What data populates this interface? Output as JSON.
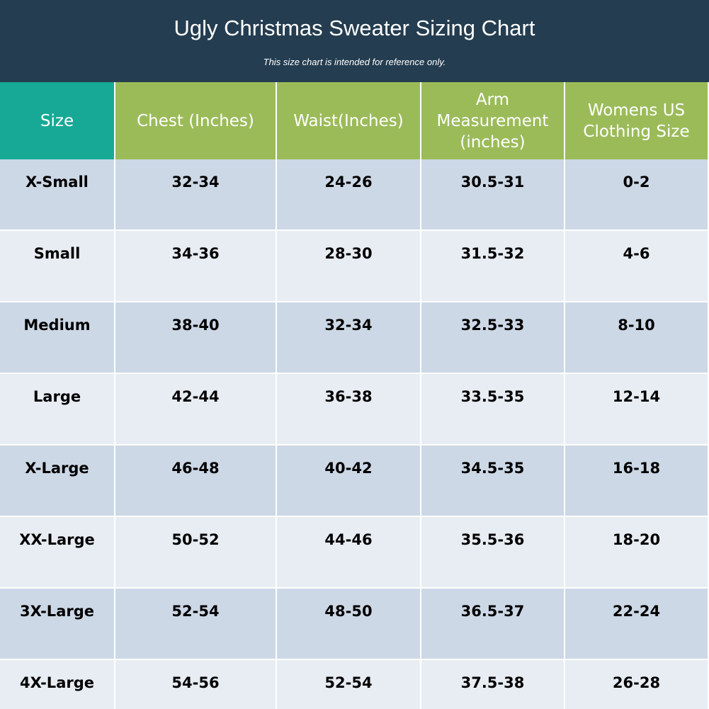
{
  "header": {
    "title": "Ugly Christmas Sweater Sizing Chart",
    "subtitle": "This size chart is intended for reference only."
  },
  "colors": {
    "banner": "#243d50",
    "size_header": "#17a995",
    "col_header": "#9bbb59",
    "row_dark": "#cdd8e6",
    "row_light": "#e8edf3",
    "grid_line": "#ffffff"
  },
  "chart_data": {
    "type": "table",
    "title": "Ugly Christmas Sweater Sizing Chart",
    "subtitle": "This size chart is intended for reference only.",
    "columns": [
      "Size",
      "Chest (Inches)",
      "Waist(Inches)",
      "Arm Measurement (inches)",
      "Womens US Clothing Size"
    ],
    "rows": [
      [
        "X-Small",
        "32-34",
        "24-26",
        "30.5-31",
        "0-2"
      ],
      [
        "Small",
        "34-36",
        "28-30",
        "31.5-32",
        "4-6"
      ],
      [
        "Medium",
        "38-40",
        "32-34",
        "32.5-33",
        "8-10"
      ],
      [
        "Large",
        "42-44",
        "36-38",
        "33.5-35",
        "12-14"
      ],
      [
        "X-Large",
        "46-48",
        "40-42",
        "34.5-35",
        "16-18"
      ],
      [
        "XX-Large",
        "50-52",
        "44-46",
        "35.5-36",
        "18-20"
      ],
      [
        "3X-Large",
        "52-54",
        "48-50",
        "36.5-37",
        "22-24"
      ],
      [
        "4X-Large",
        "54-56",
        "52-54",
        "37.5-38",
        "26-28"
      ]
    ]
  }
}
